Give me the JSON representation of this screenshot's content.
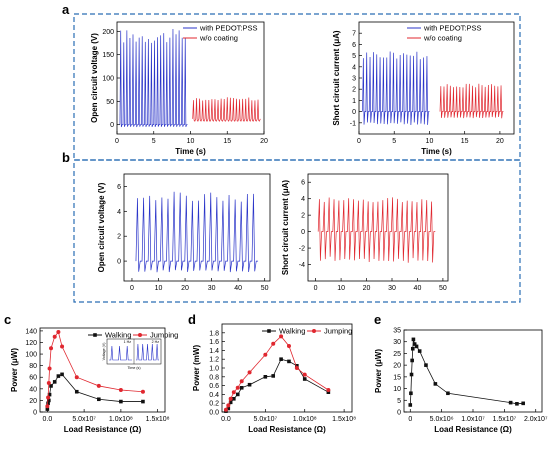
{
  "panels": {
    "a": "a",
    "b": "b",
    "c": "c",
    "d": "d",
    "e": "e"
  },
  "colors": {
    "blue": "#2b35c9",
    "red": "#e0272f",
    "black": "#111111",
    "dashed_box": "#2a6db4"
  },
  "chart_data": [
    {
      "id": "a-left",
      "type": "line",
      "xlabel": "Time (s)",
      "ylabel": "Open circuit voltage (V)",
      "xlim": [
        0,
        20
      ],
      "ylim": [
        -20,
        220
      ],
      "xticks": [
        0,
        5,
        10,
        15,
        20
      ],
      "yticks": [
        0,
        50,
        100,
        150,
        200
      ],
      "legend_position": "top-right",
      "series": [
        {
          "name": "with PEDOT:PSS",
          "color": "#2b35c9",
          "x_range": [
            0.4,
            9.6
          ],
          "peaks": 22,
          "high": 205,
          "low": -5
        },
        {
          "name": "w/o coating",
          "color": "#e0272f",
          "x_range": [
            10.3,
            19.5
          ],
          "peaks": 22,
          "high": 60,
          "low": 10
        }
      ]
    },
    {
      "id": "a-right",
      "type": "line",
      "xlabel": "Time (s)",
      "ylabel": "Short circuit current (μA)",
      "xlim": [
        0,
        22
      ],
      "ylim": [
        -2,
        8
      ],
      "xticks": [
        0,
        5,
        10,
        15,
        20
      ],
      "yticks": [
        -1,
        0,
        1,
        2,
        3,
        4,
        5,
        6,
        7
      ],
      "legend_position": "top-right",
      "series": [
        {
          "name": "with PEDOT:PSS",
          "color": "#2b35c9",
          "x_range": [
            0.5,
            10
          ],
          "peaks": 20,
          "high": 5.5,
          "low": -1.2
        },
        {
          "name": "w/o coating",
          "color": "#e0272f",
          "x_range": [
            11.5,
            20.5
          ],
          "peaks": 20,
          "high": 2.5,
          "low": -0.6
        }
      ]
    },
    {
      "id": "b-left",
      "type": "line",
      "xlabel": "",
      "ylabel": "Open circuit voltage (V)",
      "xlim": [
        -3,
        52
      ],
      "ylim": [
        -1.6,
        7
      ],
      "xticks": [
        0,
        10,
        20,
        30,
        40,
        50
      ],
      "yticks": [
        0,
        2,
        4,
        6
      ],
      "series": [
        {
          "color": "#2b35c9",
          "x_range": [
            1.5,
            47.5
          ],
          "peaks": 20,
          "high": 5.6,
          "low": -0.9
        }
      ]
    },
    {
      "id": "b-right",
      "type": "line",
      "xlabel": "",
      "ylabel": "Short circuit current (μA)",
      "xlim": [
        -3,
        52
      ],
      "ylim": [
        -6,
        7
      ],
      "xticks": [
        0,
        10,
        20,
        30,
        40,
        50
      ],
      "yticks": [
        -4,
        -2,
        0,
        2,
        4,
        6
      ],
      "series": [
        {
          "color": "#e0272f",
          "x_range": [
            1,
            47
          ],
          "peaks": 24,
          "high": 4.2,
          "low": -3.8
        }
      ]
    },
    {
      "id": "c",
      "type": "line",
      "xlabel": "Load Resistance (Ω)",
      "ylabel": "Power (μW)",
      "xlim": [
        -10000000.0,
        160000000.0
      ],
      "ylim": [
        0,
        145
      ],
      "xticks": [
        0,
        50000000.0,
        100000000.0,
        150000000.0
      ],
      "xtick_labels": [
        "0.0",
        "5.0x10⁷",
        "1.0x10⁸",
        "1.5x10⁸"
      ],
      "yticks": [
        0,
        20,
        40,
        60,
        80,
        100,
        120,
        140
      ],
      "legend_position": "top-right",
      "inset_labels": {
        "ylabel": "Voltage (V)",
        "xlabel": "Time (s)",
        "left_tag": "1 Hz",
        "right_tag": "2 Hz"
      },
      "series": [
        {
          "name": "Walking",
          "color": "#111111",
          "marker": "square",
          "x": [
            0,
            1000000.0,
            2000000.0,
            3000000.0,
            5000000.0,
            10000000.0,
            15000000.0,
            20000000.0,
            40000000.0,
            70000000.0,
            100000000.0,
            130000000.0
          ],
          "y": [
            5,
            15,
            20,
            30,
            45,
            52,
            62,
            65,
            35,
            22,
            18,
            18
          ]
        },
        {
          "name": "Jumping",
          "color": "#e0272f",
          "marker": "circle",
          "x": [
            0,
            1000000.0,
            2000000.0,
            3000000.0,
            5000000.0,
            10000000.0,
            15000000.0,
            20000000.0,
            40000000.0,
            70000000.0,
            100000000.0,
            130000000.0
          ],
          "y": [
            10,
            25,
            50,
            75,
            110,
            130,
            138,
            113,
            60,
            45,
            38,
            35
          ]
        }
      ]
    },
    {
      "id": "d",
      "type": "line",
      "xlabel": "Load Resistance (Ω)",
      "ylabel": "Power (mW)",
      "xlim": [
        -5000000.0,
        160000000.0
      ],
      "ylim": [
        0,
        2.0
      ],
      "xticks": [
        0,
        50000000.0,
        100000000.0,
        150000000.0
      ],
      "xtick_labels": [
        "0.0",
        "5.0x10⁷",
        "1.0x10⁸",
        "1.5x10⁸"
      ],
      "yticks": [
        0,
        0.2,
        0.4,
        0.6,
        0.8,
        1.0,
        1.2,
        1.4,
        1.6,
        1.8
      ],
      "ytick_labels": [
        "0.0",
        "0.2",
        "0.4",
        "0.6",
        "0.8",
        "1.0",
        "1.2",
        "1.4",
        "1.6",
        "1.8"
      ],
      "legend_position": "top-right",
      "series": [
        {
          "name": "Walking",
          "color": "#111111",
          "marker": "square",
          "x": [
            0,
            3000000.0,
            6000000.0,
            10000000.0,
            15000000.0,
            20000000.0,
            30000000.0,
            50000000.0,
            60000000.0,
            70000000.0,
            80000000.0,
            90000000.0,
            100000000.0,
            130000000.0
          ],
          "y": [
            0.02,
            0.08,
            0.22,
            0.3,
            0.4,
            0.55,
            0.62,
            0.8,
            0.82,
            1.2,
            1.15,
            1.05,
            0.75,
            0.45
          ]
        },
        {
          "name": "Jumping",
          "color": "#e0272f",
          "marker": "circle",
          "x": [
            0,
            3000000.0,
            6000000.0,
            10000000.0,
            15000000.0,
            20000000.0,
            30000000.0,
            50000000.0,
            60000000.0,
            70000000.0,
            80000000.0,
            90000000.0,
            100000000.0,
            130000000.0
          ],
          "y": [
            0.05,
            0.15,
            0.3,
            0.45,
            0.55,
            0.7,
            0.9,
            1.3,
            1.55,
            1.72,
            1.5,
            1.0,
            0.85,
            0.5
          ]
        }
      ]
    },
    {
      "id": "e",
      "type": "line",
      "xlabel": "Load Resistance (Ω)",
      "ylabel": "Power (μW)",
      "xlim": [
        -1000000.0,
        21000000.0
      ],
      "ylim": [
        0,
        35
      ],
      "xticks": [
        0,
        5000000.0,
        10000000.0,
        15000000.0,
        20000000.0
      ],
      "xtick_labels": [
        "0",
        "5.0x10⁶",
        "1.0x10⁷",
        "1.5x10⁷",
        "2.0x10⁷"
      ],
      "yticks": [
        0,
        5,
        10,
        15,
        20,
        25,
        30,
        35
      ],
      "series": [
        {
          "color": "#111111",
          "marker": "square",
          "x": [
            0,
            100000.0,
            200000.0,
            300000.0,
            400000.0,
            500000.0,
            700000.0,
            1000000.0,
            1500000.0,
            2500000.0,
            4000000.0,
            6000000.0,
            16000000.0,
            17000000.0,
            18000000.0
          ],
          "y": [
            3,
            8,
            16,
            22,
            27,
            31,
            29,
            28,
            26,
            20,
            12,
            8,
            4,
            3.5,
            3.7
          ]
        }
      ]
    }
  ]
}
